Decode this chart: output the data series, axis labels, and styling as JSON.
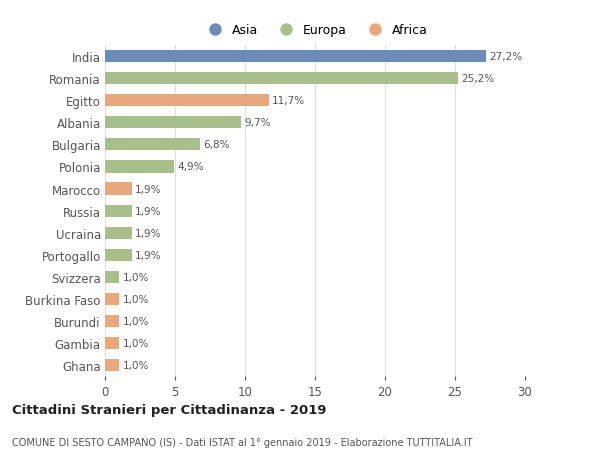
{
  "countries": [
    "India",
    "Romania",
    "Egitto",
    "Albania",
    "Bulgaria",
    "Polonia",
    "Marocco",
    "Russia",
    "Ucraina",
    "Portogallo",
    "Svizzera",
    "Burkina Faso",
    "Burundi",
    "Gambia",
    "Ghana"
  ],
  "values": [
    27.2,
    25.2,
    11.7,
    9.7,
    6.8,
    4.9,
    1.9,
    1.9,
    1.9,
    1.9,
    1.0,
    1.0,
    1.0,
    1.0,
    1.0
  ],
  "labels": [
    "27,2%",
    "25,2%",
    "11,7%",
    "9,7%",
    "6,8%",
    "4,9%",
    "1,9%",
    "1,9%",
    "1,9%",
    "1,9%",
    "1,0%",
    "1,0%",
    "1,0%",
    "1,0%",
    "1,0%"
  ],
  "colors": [
    "#6b8cba",
    "#a8bf8a",
    "#e8a87c",
    "#a8bf8a",
    "#a8bf8a",
    "#a8bf8a",
    "#e8a87c",
    "#a8bf8a",
    "#a8bf8a",
    "#a8bf8a",
    "#a8bf8a",
    "#e8a87c",
    "#e8a87c",
    "#e8a87c",
    "#e8a87c"
  ],
  "legend_labels": [
    "Asia",
    "Europa",
    "Africa"
  ],
  "legend_colors": [
    "#6b8cba",
    "#a8bf8a",
    "#e8a87c"
  ],
  "title": "Cittadini Stranieri per Cittadinanza - 2019",
  "subtitle": "COMUNE DI SESTO CAMPANO (IS) - Dati ISTAT al 1° gennaio 2019 - Elaborazione TUTTITALIA.IT",
  "xlim": [
    0,
    30
  ],
  "xticks": [
    0,
    5,
    10,
    15,
    20,
    25,
    30
  ],
  "bg_color": "#ffffff",
  "grid_color": "#dddddd",
  "bar_height": 0.55
}
